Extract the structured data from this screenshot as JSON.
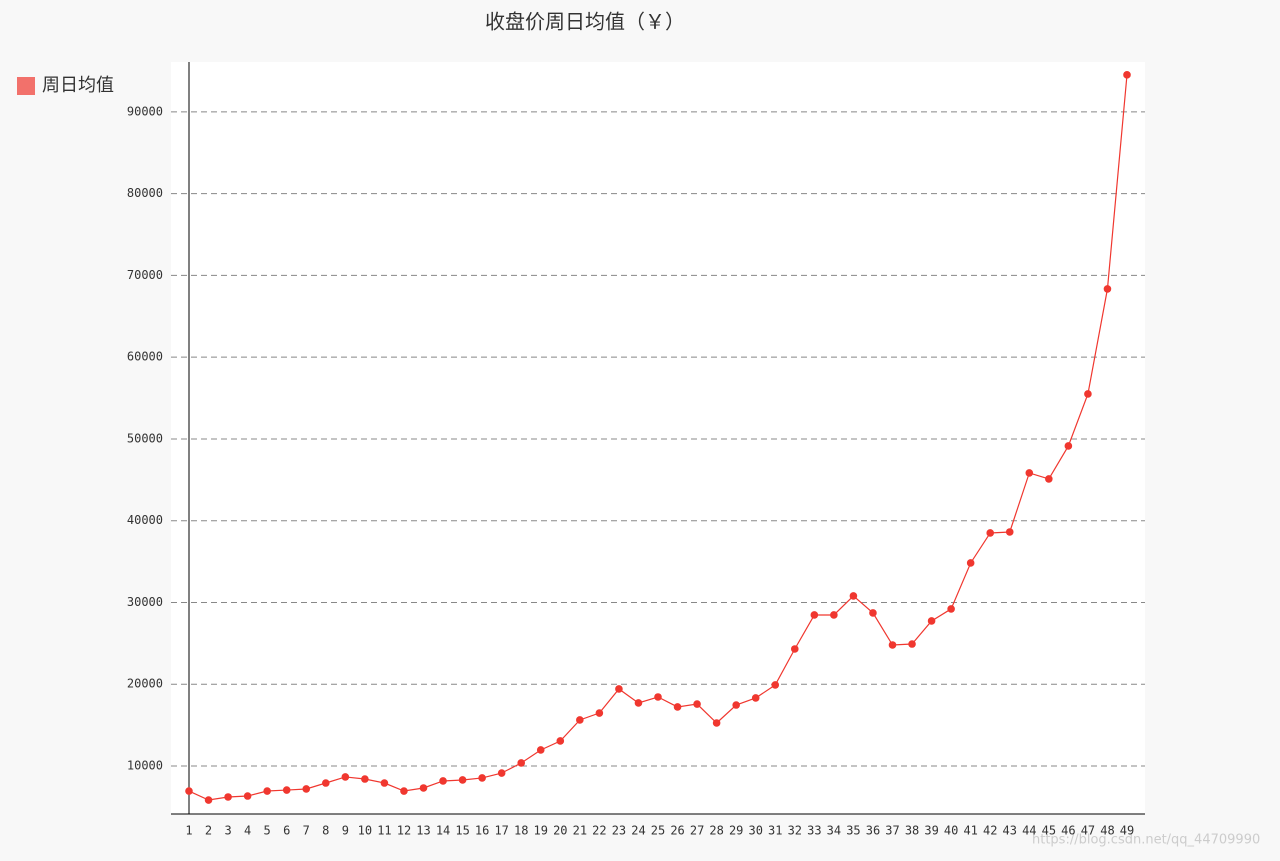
{
  "chart_data": {
    "type": "line",
    "title": "收盘价周日均值（￥）",
    "categories": [
      "1",
      "2",
      "3",
      "4",
      "5",
      "6",
      "7",
      "8",
      "9",
      "10",
      "11",
      "12",
      "13",
      "14",
      "15",
      "16",
      "17",
      "18",
      "19",
      "20",
      "21",
      "22",
      "23",
      "24",
      "25",
      "26",
      "27",
      "28",
      "29",
      "30",
      "31",
      "32",
      "33",
      "34",
      "35",
      "36",
      "37",
      "38",
      "39",
      "40",
      "41",
      "42",
      "43",
      "44",
      "45",
      "46",
      "47",
      "48",
      "49"
    ],
    "series": [
      {
        "name": "周日均值",
        "color": "#f0372f",
        "values": [
          6940,
          5840,
          6210,
          6330,
          6940,
          7060,
          7190,
          7920,
          8660,
          8410,
          7920,
          6940,
          7310,
          8170,
          8290,
          8540,
          9140,
          10370,
          11960,
          13060,
          15630,
          16480,
          19420,
          17710,
          18440,
          17220,
          17580,
          15260,
          17460,
          18320,
          19910,
          24310,
          28470,
          28470,
          30800,
          28720,
          24800,
          24920,
          27740,
          29210,
          34830,
          38500,
          38620,
          45840,
          45110,
          49140,
          55500,
          68350,
          94530
        ]
      }
    ],
    "ylim": [
      4130,
      96100
    ],
    "yticks": [
      10000,
      20000,
      30000,
      40000,
      50000,
      60000,
      70000,
      80000,
      90000
    ],
    "grid": true,
    "legend": "top-left",
    "watermark": "https://blog.csdn.net/qq_44709990"
  }
}
